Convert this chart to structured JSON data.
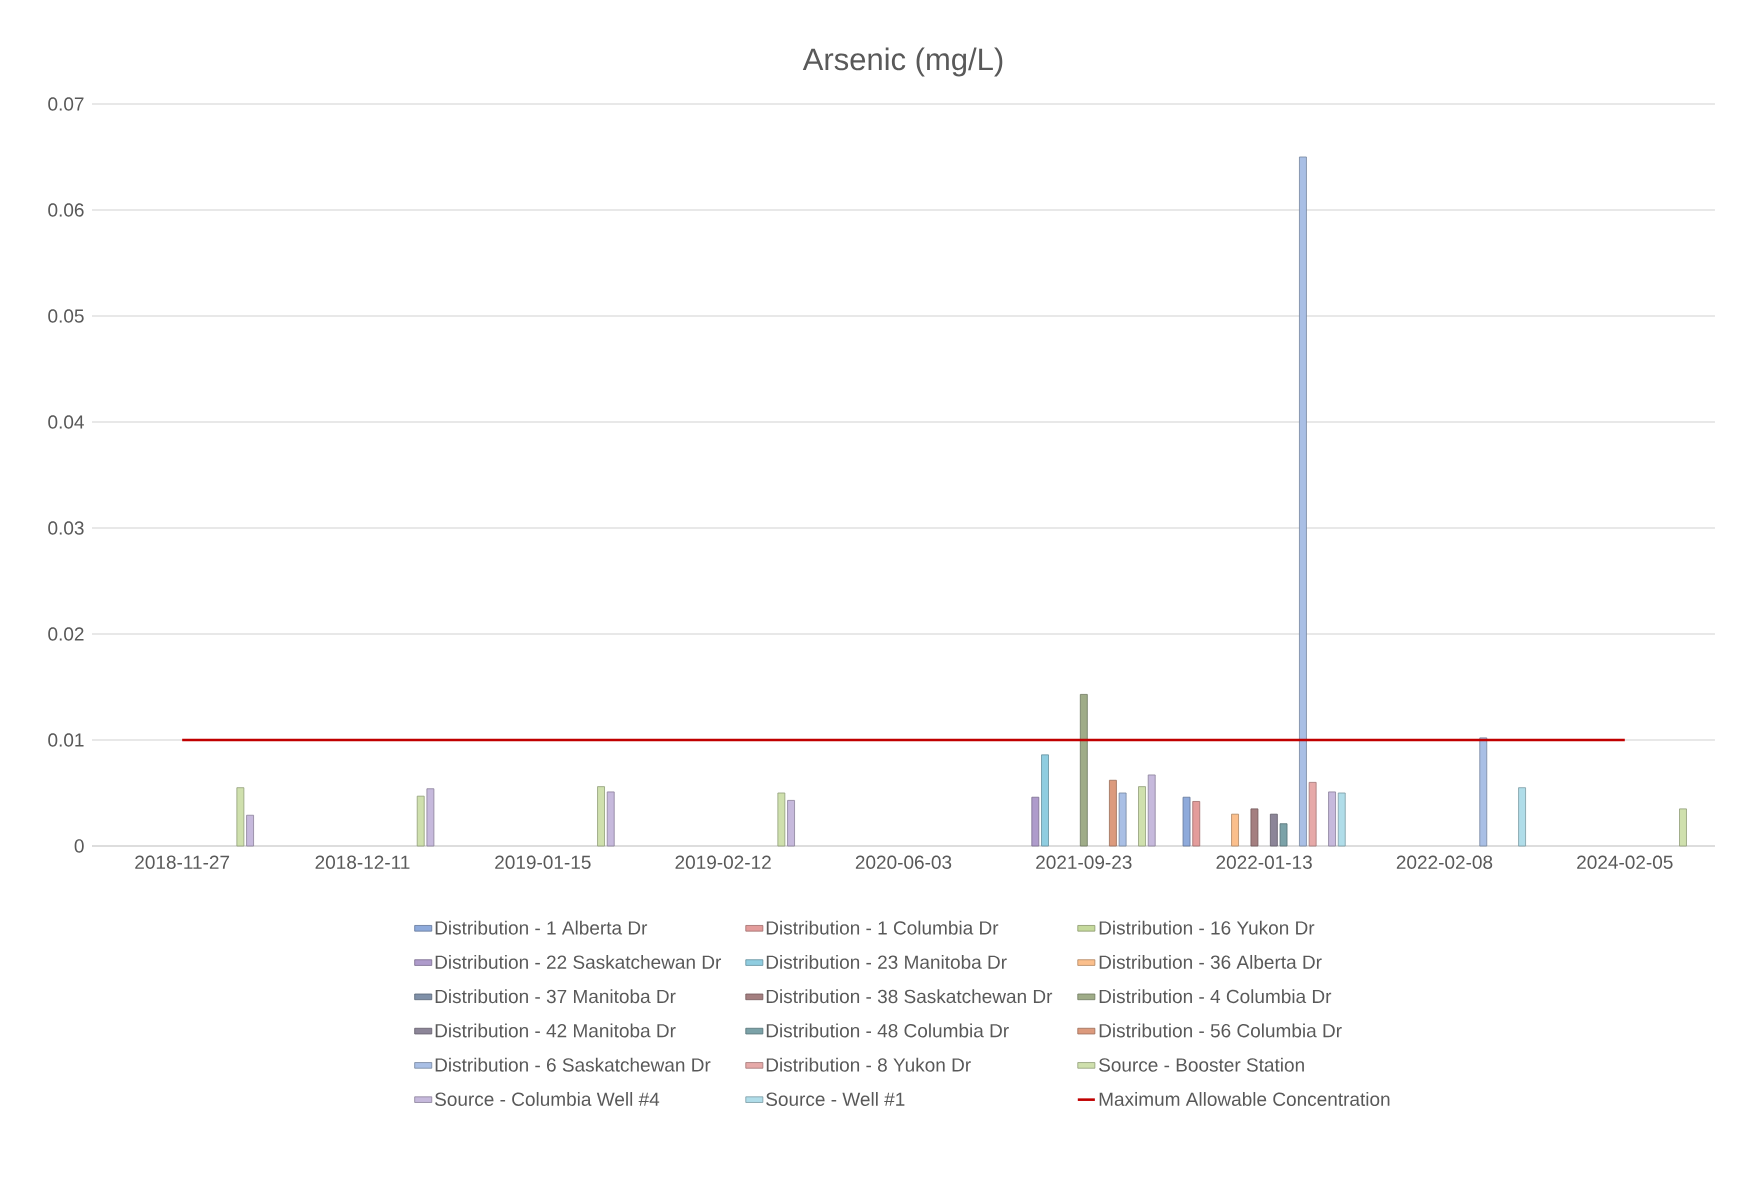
{
  "chart_data": {
    "type": "bar",
    "title": "Arsenic (mg/L)",
    "categories": [
      "2018-11-27",
      "2018-12-11",
      "2019-01-15",
      "2019-02-12",
      "2020-06-03",
      "2021-09-23",
      "2022-01-13",
      "2022-02-08",
      "2024-02-05"
    ],
    "series": [
      {
        "name": "Distribution - 1 Alberta Dr",
        "color": "#8eaadb",
        "values": [
          null,
          null,
          null,
          null,
          null,
          null,
          0.0046,
          null,
          null
        ]
      },
      {
        "name": "Distribution - 1 Columbia Dr",
        "color": "#e39c9b",
        "values": [
          null,
          null,
          null,
          null,
          null,
          null,
          0.0042,
          null,
          null
        ]
      },
      {
        "name": "Distribution - 16 Yukon Dr",
        "color": "#c5d99c",
        "values": [
          null,
          null,
          null,
          null,
          null,
          null,
          null,
          null,
          null
        ]
      },
      {
        "name": "Distribution - 22 Saskatchewan Dr",
        "color": "#ae9bcb",
        "values": [
          null,
          null,
          null,
          null,
          null,
          0.0046,
          null,
          null,
          null
        ]
      },
      {
        "name": "Distribution - 23 Manitoba Dr",
        "color": "#8fcde0",
        "values": [
          null,
          null,
          null,
          null,
          null,
          0.0086,
          null,
          null,
          null
        ]
      },
      {
        "name": "Distribution - 36 Alberta Dr",
        "color": "#fbbf8c",
        "values": [
          null,
          null,
          null,
          null,
          null,
          null,
          0.003,
          null,
          null
        ]
      },
      {
        "name": "Distribution - 37 Manitoba Dr",
        "color": "#7f90a8",
        "values": [
          null,
          null,
          null,
          null,
          null,
          null,
          null,
          null,
          null
        ]
      },
      {
        "name": "Distribution - 38 Saskatchewan Dr",
        "color": "#a47f80",
        "values": [
          null,
          null,
          null,
          null,
          null,
          null,
          0.0035,
          null,
          null
        ]
      },
      {
        "name": "Distribution - 4 Columbia Dr",
        "color": "#9fac88",
        "values": [
          null,
          null,
          null,
          null,
          null,
          0.0143,
          null,
          null,
          null
        ]
      },
      {
        "name": "Distribution - 42 Manitoba Dr",
        "color": "#8c8598",
        "values": [
          null,
          null,
          null,
          null,
          null,
          null,
          0.003,
          null,
          null
        ]
      },
      {
        "name": "Distribution - 48 Columbia Dr",
        "color": "#7ba2a8",
        "values": [
          null,
          null,
          null,
          null,
          null,
          null,
          0.0021,
          null,
          null
        ]
      },
      {
        "name": "Distribution - 56 Columbia Dr",
        "color": "#dc9a7d",
        "values": [
          null,
          null,
          null,
          null,
          null,
          0.0062,
          null,
          null,
          null
        ]
      },
      {
        "name": "Distribution - 6 Saskatchewan Dr",
        "color": "#a9bfe5",
        "values": [
          null,
          null,
          null,
          null,
          null,
          0.005,
          0.065,
          0.0102,
          null
        ]
      },
      {
        "name": "Distribution - 8 Yukon Dr",
        "color": "#e6a9a8",
        "values": [
          null,
          null,
          null,
          null,
          null,
          null,
          0.006,
          null,
          null
        ]
      },
      {
        "name": "Source - Booster Station",
        "color": "#cfe0ad",
        "values": [
          0.0055,
          0.0047,
          0.0056,
          0.005,
          null,
          0.0056,
          null,
          null,
          0.0035
        ]
      },
      {
        "name": "Source - Columbia Well #4",
        "color": "#c6b9dc",
        "values": [
          0.0029,
          0.0054,
          0.0051,
          0.0043,
          null,
          0.0067,
          0.0051,
          null,
          null
        ]
      },
      {
        "name": "Source - Well #1",
        "color": "#b0dde9",
        "values": [
          null,
          null,
          null,
          null,
          null,
          null,
          0.005,
          0.0055,
          null
        ]
      },
      {
        "name": "Maximum Allowable Concentration",
        "type": "line",
        "color": "#c00000",
        "values": [
          0.01,
          0.01,
          0.01,
          0.01,
          0.01,
          0.01,
          0.01,
          0.01,
          0.01
        ]
      }
    ],
    "ylim": [
      0,
      0.07
    ],
    "yticks": [
      0,
      0.01,
      0.02,
      0.03,
      0.04,
      0.05,
      0.06,
      0.07
    ],
    "grid": "y",
    "legend": "bottom"
  }
}
